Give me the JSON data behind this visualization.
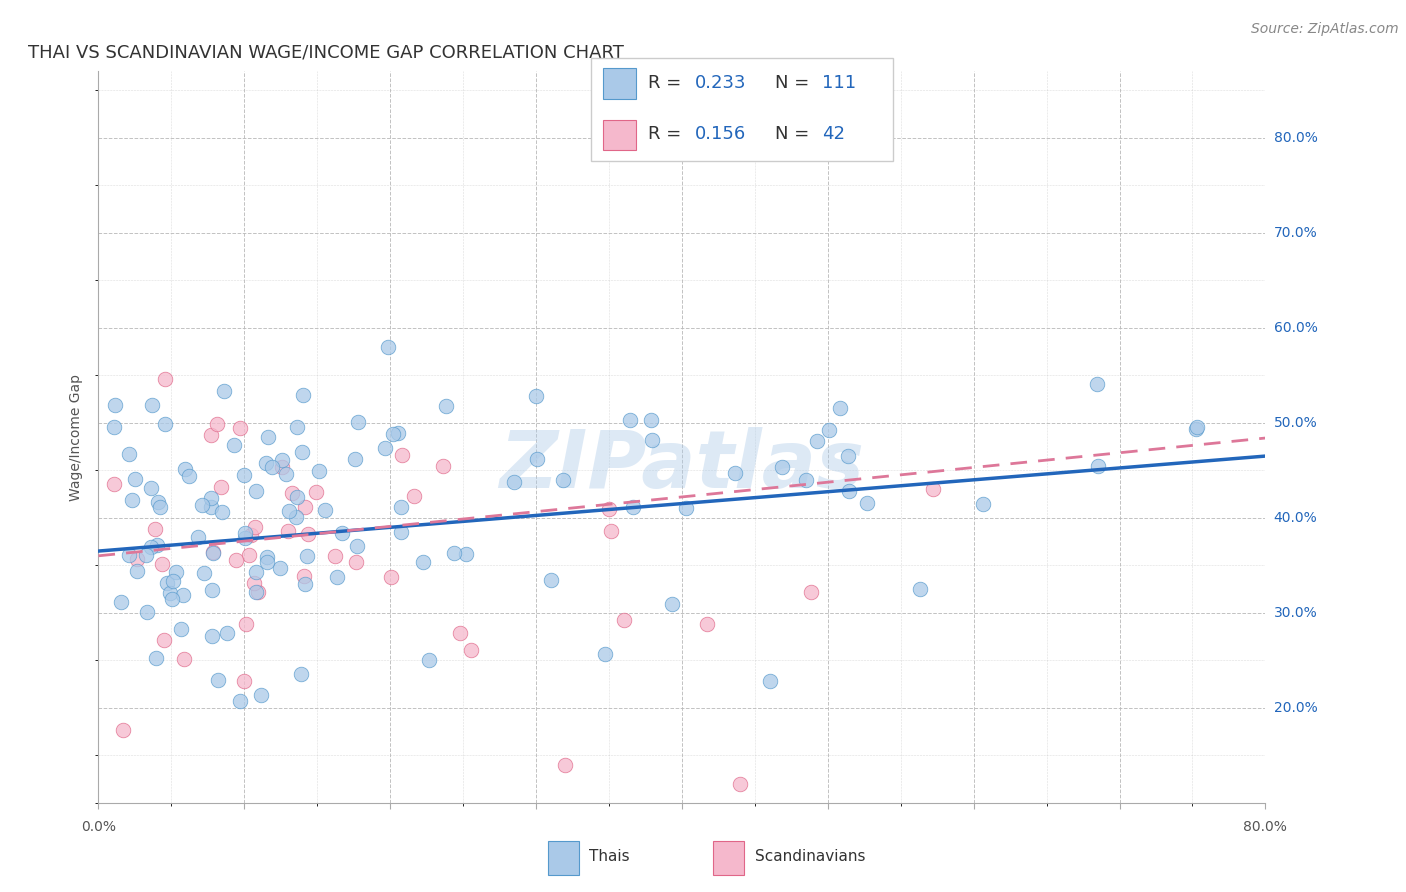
{
  "title": "THAI VS SCANDINAVIAN WAGE/INCOME GAP CORRELATION CHART",
  "source": "Source: ZipAtlas.com",
  "ylabel": "Wage/Income Gap",
  "watermark": "ZIPatlas",
  "yticks": [
    0.2,
    0.3,
    0.4,
    0.5,
    0.6,
    0.7,
    0.8
  ],
  "ytick_labels": [
    "20.0%",
    "30.0%",
    "40.0%",
    "50.0%",
    "60.0%",
    "70.0%",
    "80.0%"
  ],
  "xlim": [
    0.0,
    0.8
  ],
  "ylim": [
    0.1,
    0.87
  ],
  "thai_fill": "#aac9e8",
  "thai_edge": "#5599cc",
  "scandi_fill": "#f5b8cc",
  "scandi_edge": "#e06688",
  "thai_line_color": "#2266bb",
  "scandi_line_color": "#dd7799",
  "R_thai": 0.233,
  "N_thai": 111,
  "R_scandi": 0.156,
  "N_scandi": 42,
  "background_color": "#ffffff",
  "grid_color": "#bbbbbb",
  "title_fontsize": 13,
  "axis_label_fontsize": 10,
  "tick_label_fontsize": 10,
  "legend_fontsize": 13,
  "source_fontsize": 10,
  "right_tick_color": "#2266bb"
}
